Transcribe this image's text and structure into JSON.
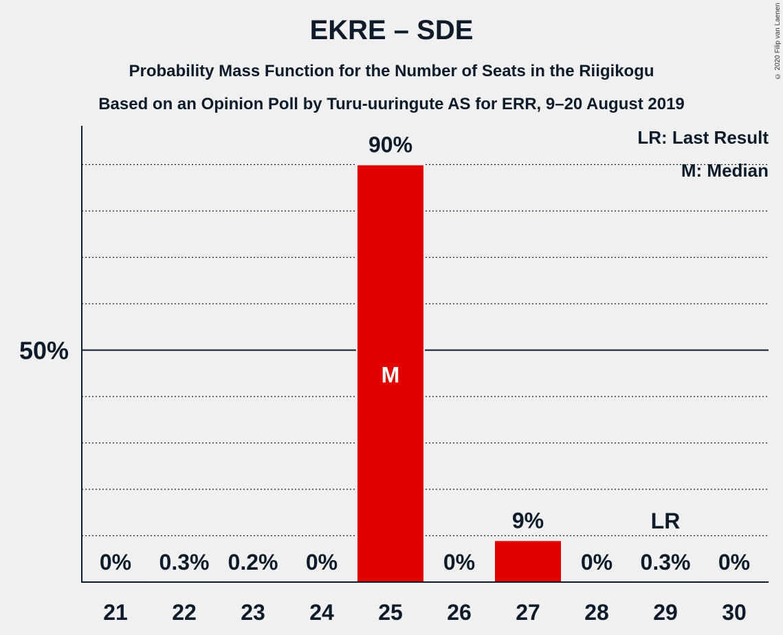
{
  "header": {
    "title": "EKRE – SDE",
    "subtitle1": "Probability Mass Function for the Number of Seats in the Riigikogu",
    "subtitle2": "Based on an Opinion Poll by Turu-uuringute AS for ERR, 9–20 August 2019",
    "copyright": "© 2020 Filip van Laenen"
  },
  "legend": {
    "lr": "LR: Last Result",
    "median": "M: Median"
  },
  "chart_data": {
    "type": "bar",
    "categories": [
      "21",
      "22",
      "23",
      "24",
      "25",
      "26",
      "27",
      "28",
      "29",
      "30"
    ],
    "values": [
      0,
      0.3,
      0.2,
      0,
      90,
      0,
      9,
      0,
      0.3,
      0
    ],
    "labels": [
      "0%",
      "0.3%",
      "0.2%",
      "0%",
      "90%",
      "0%",
      "9%",
      "0%",
      "0.3%",
      "0%"
    ],
    "ylim": [
      0,
      100
    ],
    "y_tick_label": "50%",
    "y_tick_value": 50,
    "median_category": "25",
    "median_marker": "M",
    "last_result_category": "29",
    "last_result_marker": "LR",
    "bar_color": "#e00000",
    "gridlines": "dotted every 10%",
    "legend_position": "top-right"
  }
}
